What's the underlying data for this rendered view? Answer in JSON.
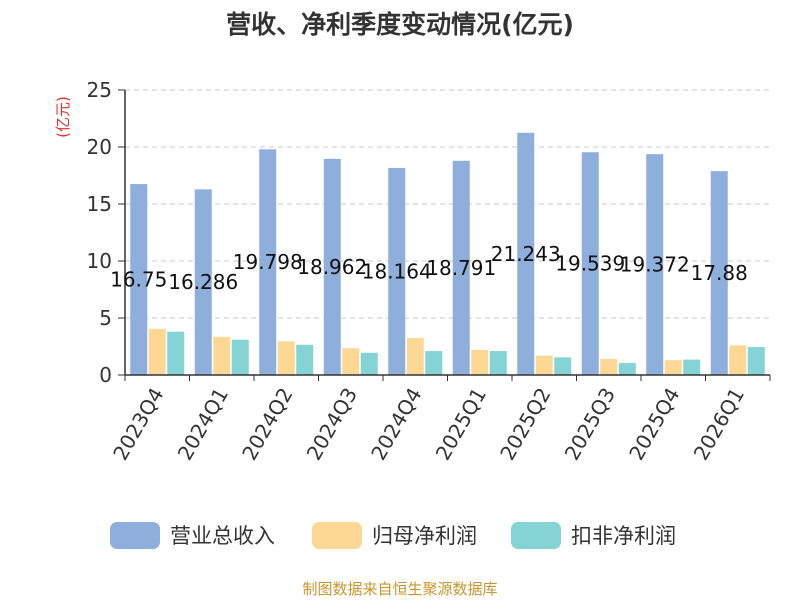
{
  "chart_data": {
    "type": "bar",
    "title": "营收、净利季度变动情况(亿元)",
    "ylabel": "(亿元)",
    "categories": [
      "2023Q4",
      "2024Q1",
      "2024Q2",
      "2024Q3",
      "2024Q4",
      "2025Q1",
      "2025Q2",
      "2025Q3",
      "2025Q4",
      "2026Q1"
    ],
    "series": [
      {
        "name": "营业总收入",
        "color": "#8eaedb",
        "values": [
          16.75,
          16.286,
          19.798,
          18.962,
          18.164,
          18.791,
          21.243,
          19.539,
          19.372,
          17.88
        ],
        "labels": [
          "16.75",
          "16.286",
          "19.798",
          "18.962",
          "18.164",
          "18.791",
          "21.243",
          "19.539",
          "19.372",
          "17.88"
        ]
      },
      {
        "name": "归母净利润",
        "color": "#fdd894",
        "values": [
          4.05,
          3.35,
          2.95,
          2.35,
          3.25,
          2.2,
          1.7,
          1.4,
          1.3,
          2.6
        ]
      },
      {
        "name": "扣非净利润",
        "color": "#84d4d6",
        "values": [
          3.8,
          3.1,
          2.65,
          1.95,
          2.1,
          2.1,
          1.55,
          1.05,
          1.35,
          2.45
        ]
      }
    ],
    "ylim": [
      0,
      25
    ],
    "yticks": [
      0,
      5,
      10,
      15,
      20,
      25
    ],
    "grid": true,
    "legend_position": "bottom"
  },
  "footer": {
    "source": "制图数据来自恒生聚源数据库"
  }
}
